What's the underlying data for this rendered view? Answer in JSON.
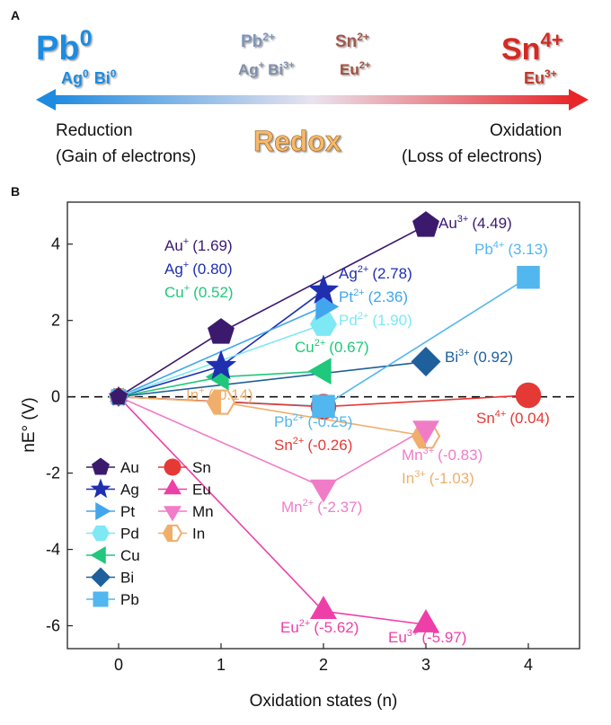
{
  "panel_a": {
    "label": "A",
    "left_main": "Pb",
    "left_main_sup": "0",
    "left_sub": [
      "Ag",
      "0",
      "Bi",
      "0"
    ],
    "mid_top_1": [
      "Pb",
      "2+"
    ],
    "mid_bottom_1": [
      "Ag",
      "+",
      "Bi",
      "3+"
    ],
    "mid_top_2": [
      "Sn",
      "2+"
    ],
    "mid_bottom_2": [
      "Eu",
      "2+"
    ],
    "right_main": "Sn",
    "right_main_sup": "4+",
    "right_sub": [
      "Eu",
      "3+"
    ],
    "left_caption_1": "Reduction",
    "left_caption_2": "(Gain of electrons)",
    "center_caption": "Redox",
    "right_caption_1": "Oxidation",
    "right_caption_2": "(Loss of electrons)"
  },
  "panel_b": {
    "label": "B"
  },
  "colors": {
    "Au": "#3b1a6e",
    "Ag": "#1f2fb0",
    "Pt": "#41a6ee",
    "Pd": "#7ee8f5",
    "Cu": "#1fc87a",
    "Bi": "#1e5f9c",
    "Pb": "#52b6ef",
    "Sn": "#e53935",
    "Eu": "#ee3fa8",
    "Mn": "#f07cc8",
    "In": "#f0ae6a",
    "arrow_left": "#1f8be0",
    "arrow_right": "#e8262a",
    "redox": "#f7b96a"
  },
  "chart_data": {
    "type": "line",
    "xlabel": "Oxidation states (n)",
    "ylabel": "nE° (V)",
    "xlim": [
      -0.5,
      4.5
    ],
    "ylim": [
      -6.6,
      5.1
    ],
    "xticks": [
      "0",
      "1",
      "2",
      "3",
      "4"
    ],
    "yticks": [
      "-6",
      "-4",
      "-2",
      "0",
      "2",
      "4"
    ],
    "reference_line": 0,
    "series": [
      {
        "name": "Au",
        "marker": "pentagon",
        "points": [
          [
            0,
            0
          ],
          [
            1,
            1.69
          ],
          [
            3,
            4.49
          ]
        ]
      },
      {
        "name": "Ag",
        "marker": "star",
        "points": [
          [
            0,
            0
          ],
          [
            1,
            0.8
          ],
          [
            2,
            2.78
          ]
        ]
      },
      {
        "name": "Pt",
        "marker": "triangle-right",
        "points": [
          [
            0,
            0
          ],
          [
            2,
            2.36
          ]
        ]
      },
      {
        "name": "Pd",
        "marker": "hexagon",
        "points": [
          [
            0,
            0
          ],
          [
            2,
            1.9
          ]
        ]
      },
      {
        "name": "Cu",
        "marker": "triangle-left",
        "points": [
          [
            0,
            0
          ],
          [
            1,
            0.52
          ],
          [
            2,
            0.67
          ]
        ]
      },
      {
        "name": "Bi",
        "marker": "diamond",
        "points": [
          [
            0,
            0
          ],
          [
            3,
            0.92
          ]
        ]
      },
      {
        "name": "Pb",
        "marker": "square",
        "points": [
          [
            0,
            0
          ],
          [
            2,
            -0.25
          ],
          [
            4,
            3.13
          ]
        ]
      },
      {
        "name": "Sn",
        "marker": "circle",
        "points": [
          [
            0,
            0
          ],
          [
            2,
            -0.26
          ],
          [
            4,
            0.04
          ]
        ]
      },
      {
        "name": "Eu",
        "marker": "triangle-up",
        "points": [
          [
            0,
            0
          ],
          [
            2,
            -5.62
          ],
          [
            3,
            -5.97
          ]
        ]
      },
      {
        "name": "Mn",
        "marker": "triangle-down",
        "points": [
          [
            0,
            0
          ],
          [
            2,
            -2.37
          ],
          [
            3,
            -0.83
          ]
        ]
      },
      {
        "name": "In",
        "marker": "half-hexagon",
        "points": [
          [
            0,
            0
          ],
          [
            1,
            -0.14
          ],
          [
            3,
            -1.03
          ]
        ]
      }
    ],
    "annotations": [
      {
        "color": "Au",
        "ion": "Au",
        "charge": "+",
        "value": "(1.69)"
      },
      {
        "color": "Ag",
        "ion": "Ag",
        "charge": "+",
        "value": "(0.80)"
      },
      {
        "color": "Cu",
        "ion": "Cu",
        "charge": "+",
        "value": "(0.52)"
      },
      {
        "color": "Au",
        "ion": "Au",
        "charge": "3+",
        "value": "(4.49)"
      },
      {
        "color": "Pb",
        "ion": "Pb",
        "charge": "4+",
        "value": "(3.13)"
      },
      {
        "color": "Ag",
        "ion": "Ag",
        "charge": "2+",
        "value": "(2.78)"
      },
      {
        "color": "Pt",
        "ion": "Pt",
        "charge": "2+",
        "value": "(2.36)"
      },
      {
        "color": "Pd",
        "ion": "Pd",
        "charge": "2+",
        "value": "(1.90)"
      },
      {
        "color": "Cu",
        "ion": "Cu",
        "charge": "2+",
        "value": "(0.67)"
      },
      {
        "color": "Bi",
        "ion": "Bi",
        "charge": "3+",
        "value": "(0.92)"
      },
      {
        "color": "In",
        "ion": "In",
        "charge": "+",
        "value": "(-0.14)"
      },
      {
        "color": "Pb",
        "ion": "Pb",
        "charge": "2+",
        "value": "(-0.25)"
      },
      {
        "color": "Sn",
        "ion": "Sn",
        "charge": "4+",
        "value": "(0.04)"
      },
      {
        "color": "Sn",
        "ion": "Sn",
        "charge": "2+",
        "value": "(-0.26)"
      },
      {
        "color": "Mn",
        "ion": "Mn",
        "charge": "3+",
        "value": "(-0.83)"
      },
      {
        "color": "In",
        "ion": "In",
        "charge": "3+",
        "value": "(-1.03)"
      },
      {
        "color": "Mn",
        "ion": "Mn",
        "charge": "2+",
        "value": "(-2.37)"
      },
      {
        "color": "Eu",
        "ion": "Eu",
        "charge": "2+",
        "value": "(-5.62)"
      },
      {
        "color": "Eu",
        "ion": "Eu",
        "charge": "3+",
        "value": "(-5.97)"
      }
    ],
    "legend": {
      "placement": "lower-left",
      "columns": [
        [
          "Au",
          "Ag",
          "Pt",
          "Pd",
          "Cu",
          "Bi",
          "Pb"
        ],
        [
          "Sn",
          "Eu",
          "Mn",
          "In"
        ]
      ]
    }
  }
}
